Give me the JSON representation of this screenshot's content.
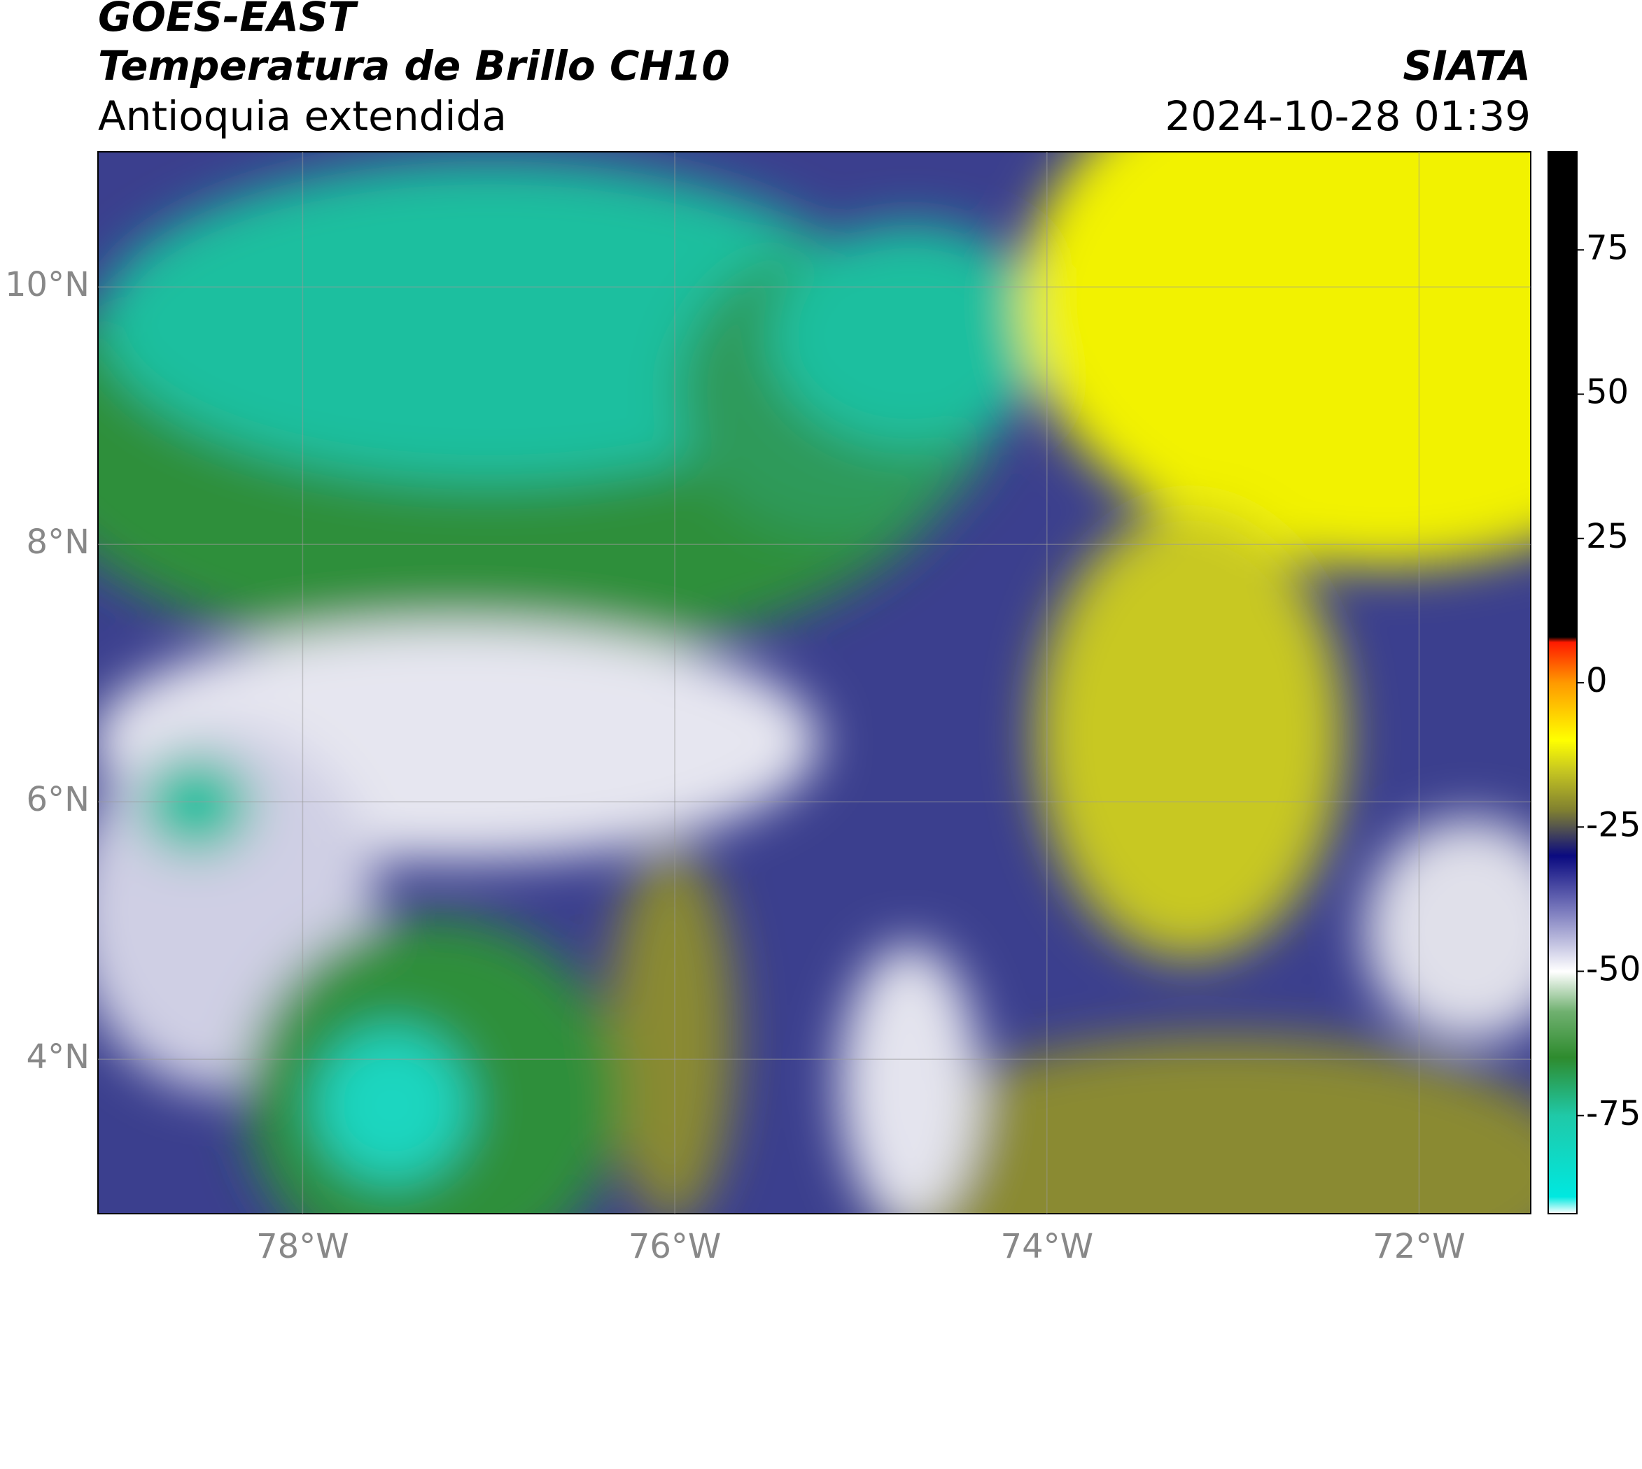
{
  "chart_data": {
    "type": "map",
    "title": "GOES-EAST",
    "subtitle": "Temperatura de Brillo CH10",
    "region": "Antioquia extendida",
    "source": "SIATA",
    "timestamp": "2024-10-28 01:39",
    "xlim": [
      -79.1,
      -71.4
    ],
    "ylim": [
      2.8,
      11.05
    ],
    "xticks": [
      {
        "value": -78,
        "label": "78°W"
      },
      {
        "value": -76,
        "label": "76°W"
      },
      {
        "value": -74,
        "label": "74°W"
      },
      {
        "value": -72,
        "label": "72°W"
      }
    ],
    "yticks": [
      {
        "value": 4,
        "label": "4°N"
      },
      {
        "value": 6,
        "label": "6°N"
      },
      {
        "value": 8,
        "label": "8°N"
      },
      {
        "value": 10,
        "label": "10°N"
      }
    ],
    "grid": true,
    "colorbar": {
      "lim": [
        -92,
        92
      ],
      "ticks": [
        -75,
        -50,
        -25,
        0,
        25,
        50,
        75
      ]
    }
  }
}
